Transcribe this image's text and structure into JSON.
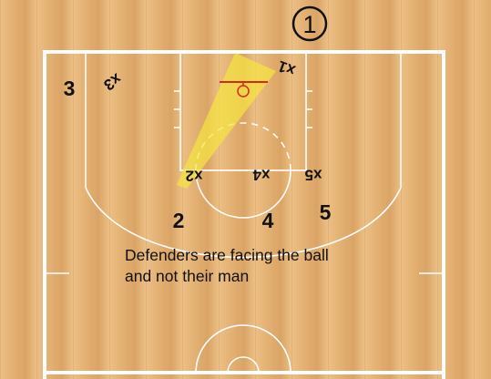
{
  "diagram": {
    "colors": {
      "wood_light": "#ecbf85",
      "wood_dark": "#d9a262",
      "lines": "#ffffff",
      "rim": "#d42a1c",
      "vision_cone": "#f7e640",
      "players": "#111111"
    },
    "ball_holder": "1",
    "offense": [
      "2",
      "3",
      "4",
      "5"
    ],
    "defense": [
      "x1",
      "x2",
      "x3",
      "x4",
      "x5"
    ],
    "caption": {
      "line1": "Defenders are facing the ball",
      "line2": "and not their man"
    }
  }
}
